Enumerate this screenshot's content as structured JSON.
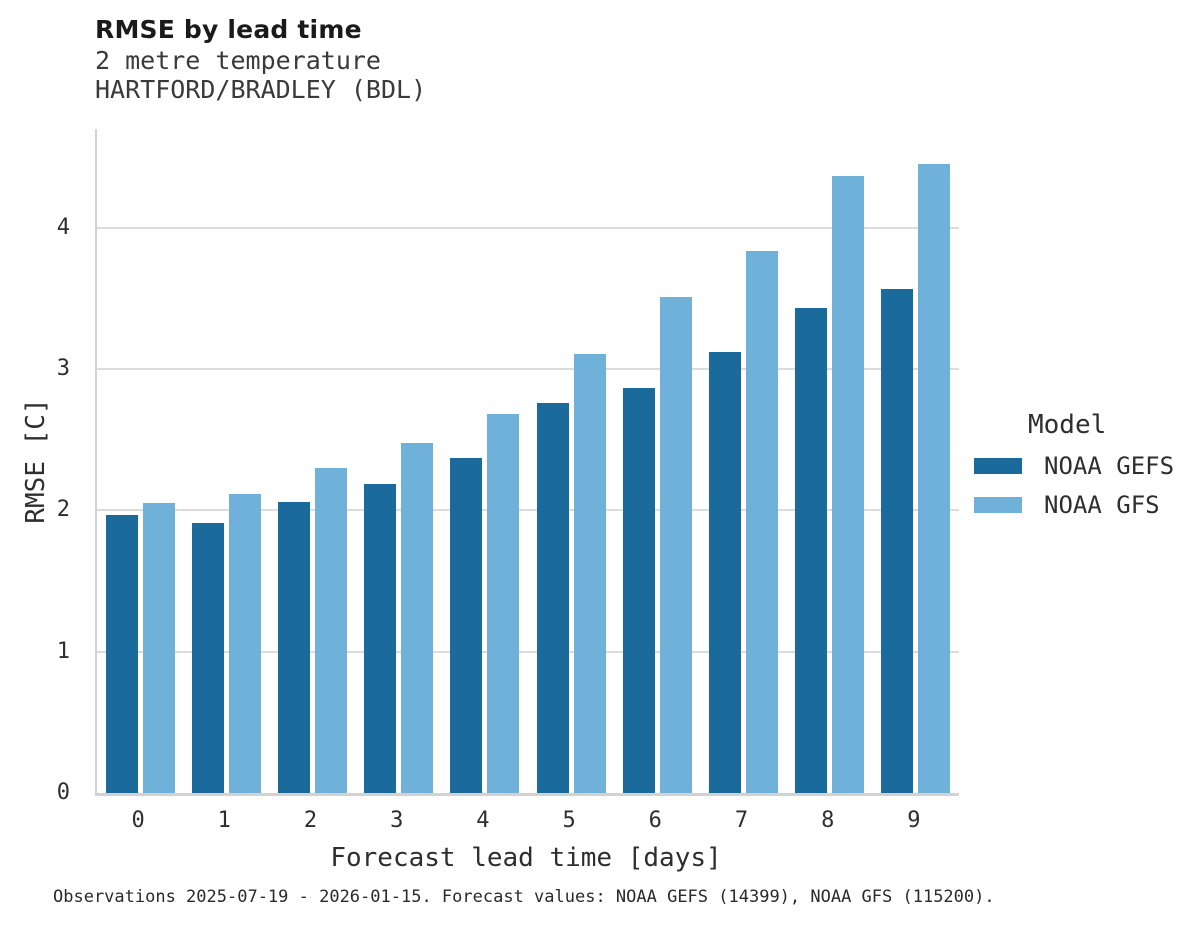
{
  "header": {
    "title": "RMSE by lead time",
    "subtitle_line1": "2 metre temperature",
    "subtitle_line2": "HARTFORD/BRADLEY (BDL)"
  },
  "chart_data": {
    "type": "bar",
    "title": "RMSE by lead time",
    "subtitle": [
      "2 metre temperature",
      "HARTFORD/BRADLEY (BDL)"
    ],
    "categories": [
      "0",
      "1",
      "2",
      "3",
      "4",
      "5",
      "6",
      "7",
      "8",
      "9"
    ],
    "series": [
      {
        "name": "NOAA GEFS",
        "color": "#1a6a9c",
        "values": [
          1.97,
          1.91,
          2.06,
          2.19,
          2.37,
          2.76,
          2.87,
          3.12,
          3.43,
          3.57
        ]
      },
      {
        "name": "NOAA GFS",
        "color": "#6fb1d9",
        "values": [
          2.05,
          2.12,
          2.3,
          2.48,
          2.68,
          3.11,
          3.51,
          3.84,
          4.37,
          4.45
        ]
      }
    ],
    "xlabel": "Forecast lead time [days]",
    "ylabel": "RMSE [C]",
    "ylim": [
      0,
      4.7
    ],
    "yticks": [
      0,
      1,
      2,
      3,
      4
    ],
    "grid": true,
    "legend_title": "Model",
    "legend_position": "right"
  },
  "colors": {
    "gefs": "#1a6a9c",
    "gfs": "#6fb1d9",
    "gridline": "#dcdcdc",
    "spine": "#d2d2d2"
  },
  "footer": {
    "caption": "Observations 2025-07-19 - 2026-01-15. Forecast values: NOAA GEFS (14399), NOAA GFS (115200)."
  }
}
